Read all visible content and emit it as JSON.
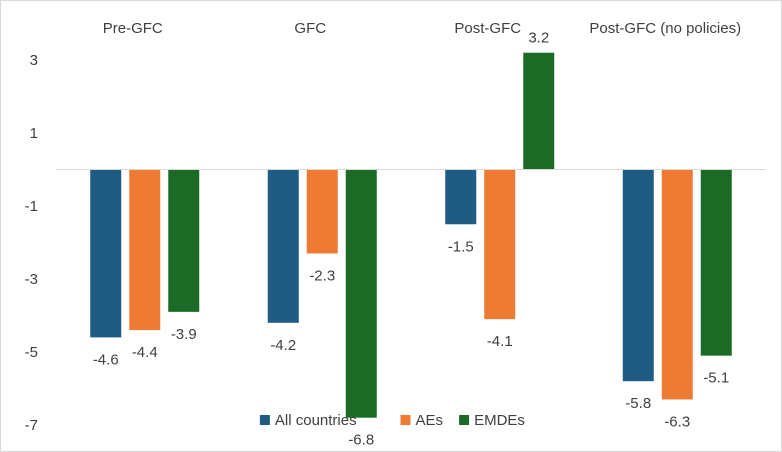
{
  "chart_data": {
    "type": "bar",
    "categories": [
      "Pre-GFC",
      "GFC",
      "Post-GFC",
      "Post-GFC (no policies)"
    ],
    "series": [
      {
        "name": "All countries",
        "color": "#1f5c84",
        "values": [
          -4.6,
          -4.2,
          -1.5,
          -5.8
        ]
      },
      {
        "name": "AEs",
        "color": "#ee7b33",
        "values": [
          -4.4,
          -2.3,
          -4.1,
          -6.3
        ]
      },
      {
        "name": "EMDEs",
        "color": "#1b6b26",
        "values": [
          -3.9,
          -6.8,
          3.2,
          -5.1
        ]
      }
    ],
    "yticks": [
      3,
      1,
      -1,
      -3,
      -5,
      -7
    ],
    "ylim": [
      -7.4,
      4.1
    ],
    "grid": false,
    "legend_position": "bottom",
    "category_position": "top",
    "title": "",
    "xlabel": "",
    "ylabel": ""
  }
}
